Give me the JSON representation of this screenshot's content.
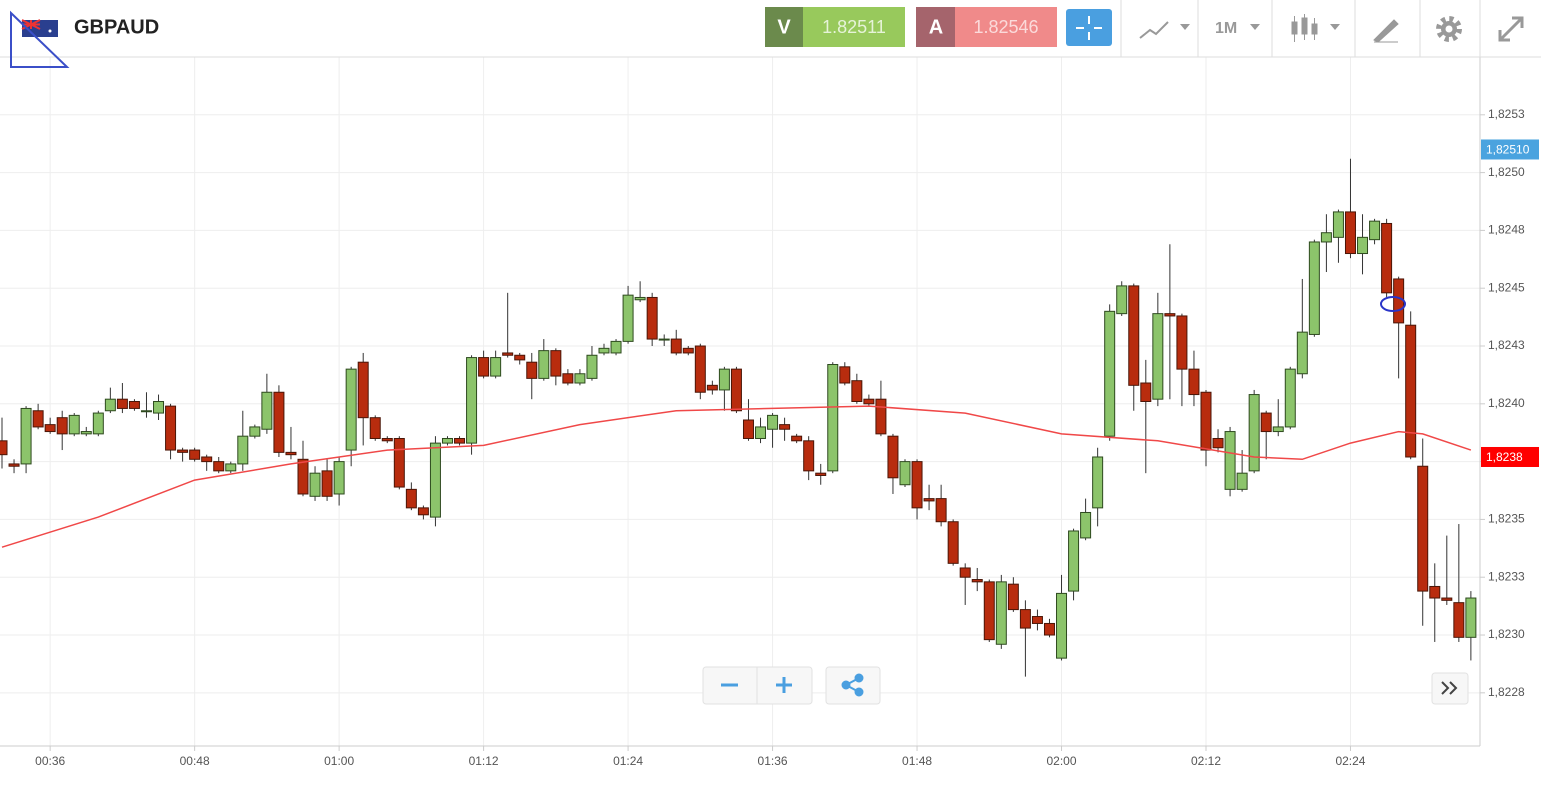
{
  "header": {
    "symbol": "GBPAUD",
    "sell_label": "V",
    "sell_price": "1.82511",
    "buy_label": "A",
    "buy_price": "1.82546",
    "timeframe": "1M"
  },
  "chart_data": {
    "type": "candlestick",
    "x": [
      "00:32",
      "00:33",
      "00:34",
      "00:35",
      "00:36",
      "00:37",
      "00:38",
      "00:39",
      "00:40",
      "00:41",
      "00:42",
      "00:43",
      "00:44",
      "00:45",
      "00:46",
      "00:47",
      "00:48",
      "00:49",
      "00:50",
      "00:51",
      "00:52",
      "00:53",
      "00:54",
      "00:55",
      "00:56",
      "00:57",
      "00:58",
      "00:59",
      "01:00",
      "01:01",
      "01:02",
      "01:03",
      "01:04",
      "01:05",
      "01:06",
      "01:07",
      "01:08",
      "01:09",
      "01:10",
      "01:11",
      "01:12",
      "01:13",
      "01:14",
      "01:15",
      "01:16",
      "01:17",
      "01:18",
      "01:19",
      "01:20",
      "01:21",
      "01:22",
      "01:23",
      "01:24",
      "01:25",
      "01:26",
      "01:27",
      "01:28",
      "01:29",
      "01:30",
      "01:31",
      "01:32",
      "01:33",
      "01:34",
      "01:35",
      "01:36",
      "01:37",
      "01:38",
      "01:39",
      "01:40",
      "01:41",
      "01:42",
      "01:43",
      "01:44",
      "01:45",
      "01:46",
      "01:47",
      "01:48",
      "01:49",
      "01:50",
      "01:51",
      "01:52",
      "01:53",
      "01:54",
      "01:55",
      "01:56",
      "01:57",
      "01:58",
      "01:59",
      "02:00",
      "02:01",
      "02:02",
      "02:03",
      "02:04",
      "02:05",
      "02:06",
      "02:07",
      "02:08",
      "02:09",
      "02:10",
      "02:11",
      "02:12",
      "02:13",
      "02:14",
      "02:15",
      "02:16",
      "02:17",
      "02:18",
      "02:19",
      "02:20",
      "02:21",
      "02:22",
      "02:23",
      "02:24",
      "02:25",
      "02:26",
      "02:27",
      "02:28",
      "02:29",
      "02:30",
      "02:31",
      "02:32",
      "02:33",
      "02:34"
    ],
    "open": [
      1.82384,
      1.82374,
      1.82374,
      1.82397,
      1.82391,
      1.82394,
      1.82387,
      1.82387,
      1.82387,
      1.82397,
      1.82402,
      1.82401,
      1.82397,
      1.82396,
      1.82399,
      1.8238,
      1.8238,
      1.82377,
      1.82375,
      1.82371,
      1.82374,
      1.82386,
      1.82389,
      1.82405,
      1.82379,
      1.82376,
      1.8236,
      1.82371,
      1.82361,
      1.8238,
      1.82418,
      1.82394,
      1.82385,
      1.82385,
      1.82363,
      1.82355,
      1.82351,
      1.82383,
      1.82385,
      1.82383,
      1.8242,
      1.82412,
      1.82422,
      1.82421,
      1.82418,
      1.82411,
      1.82423,
      1.82413,
      1.82409,
      1.82411,
      1.82422,
      1.82422,
      1.82427,
      1.82445,
      1.82446,
      1.82428,
      1.82428,
      1.82424,
      1.82425,
      1.82408,
      1.82406,
      1.82415,
      1.82393,
      1.82385,
      1.82389,
      1.82391,
      1.82386,
      1.82384,
      1.8237,
      1.82371,
      1.82416,
      1.8241,
      1.82402,
      1.82402,
      1.82386,
      1.82365,
      1.82375,
      1.82359,
      1.82359,
      1.82349,
      1.82329,
      1.82324,
      1.82323,
      1.82296,
      1.82322,
      1.82311,
      1.82308,
      1.82305,
      1.8229,
      1.82319,
      1.82342,
      1.82355,
      1.82386,
      1.82439,
      1.82451,
      1.82409,
      1.82402,
      1.82439,
      1.82438,
      1.82415,
      1.82405,
      1.82385,
      1.82363,
      1.82363,
      1.82371,
      1.82396,
      1.82388,
      1.8239,
      1.82413,
      1.8243,
      1.8247,
      1.82472,
      1.82483,
      1.82465,
      1.82471,
      1.82478,
      1.82454,
      1.82434,
      1.82373,
      1.82321,
      1.82316,
      1.82314,
      1.82299
    ],
    "high": [
      1.82394,
      1.82376,
      1.82399,
      1.824,
      1.82394,
      1.82397,
      1.82396,
      1.8239,
      1.82397,
      1.82407,
      1.82409,
      1.82402,
      1.82405,
      1.82404,
      1.824,
      1.82381,
      1.82381,
      1.82378,
      1.82377,
      1.82375,
      1.82397,
      1.82391,
      1.82413,
      1.82408,
      1.8239,
      1.82384,
      1.82373,
      1.82376,
      1.82377,
      1.82416,
      1.82422,
      1.82395,
      1.82386,
      1.82386,
      1.82366,
      1.82356,
      1.82386,
      1.82386,
      1.82386,
      1.82421,
      1.82423,
      1.82423,
      1.82448,
      1.82422,
      1.82422,
      1.82428,
      1.82424,
      1.82415,
      1.82415,
      1.82425,
      1.82426,
      1.82428,
      1.82451,
      1.82453,
      1.82448,
      1.8243,
      1.82432,
      1.82425,
      1.82426,
      1.8241,
      1.82416,
      1.82416,
      1.82402,
      1.82394,
      1.82396,
      1.82394,
      1.82387,
      1.82386,
      1.82374,
      1.82418,
      1.82418,
      1.82413,
      1.82404,
      1.8241,
      1.82387,
      1.82376,
      1.82376,
      1.82365,
      1.82365,
      1.8235,
      1.82331,
      1.82329,
      1.82324,
      1.82326,
      1.82325,
      1.82315,
      1.82311,
      1.82307,
      1.82326,
      1.82346,
      1.82359,
      1.82381,
      1.82443,
      1.82453,
      1.82452,
      1.82419,
      1.82448,
      1.82469,
      1.82439,
      1.82423,
      1.82406,
      1.82389,
      1.8239,
      1.8238,
      1.82406,
      1.82397,
      1.82402,
      1.82416,
      1.82454,
      1.82471,
      1.82482,
      1.82484,
      1.82506,
      1.82482,
      1.8248,
      1.8248,
      1.82455,
      1.8244,
      1.82385,
      1.82331,
      1.82343,
      1.82348,
      1.82319
    ],
    "low": [
      1.82372,
      1.8237,
      1.8237,
      1.82389,
      1.82387,
      1.8238,
      1.82386,
      1.82386,
      1.82386,
      1.82396,
      1.82396,
      1.82397,
      1.82394,
      1.82393,
      1.82376,
      1.82375,
      1.82375,
      1.82371,
      1.8237,
      1.8237,
      1.82371,
      1.82385,
      1.82387,
      1.82377,
      1.82376,
      1.8236,
      1.82358,
      1.82358,
      1.82356,
      1.82373,
      1.82382,
      1.82384,
      1.82383,
      1.82363,
      1.82354,
      1.8235,
      1.82347,
      1.82382,
      1.82382,
      1.82378,
      1.82411,
      1.82411,
      1.8242,
      1.82417,
      1.82402,
      1.8241,
      1.82408,
      1.82408,
      1.82408,
      1.8241,
      1.82421,
      1.82421,
      1.82426,
      1.82444,
      1.82425,
      1.82425,
      1.82421,
      1.82421,
      1.82402,
      1.82404,
      1.82397,
      1.82396,
      1.82384,
      1.82383,
      1.82381,
      1.82384,
      1.82383,
      1.82367,
      1.82365,
      1.8237,
      1.82408,
      1.824,
      1.82399,
      1.82386,
      1.82361,
      1.82364,
      1.8235,
      1.82354,
      1.82347,
      1.8233,
      1.82313,
      1.82319,
      1.82297,
      1.82294,
      1.8231,
      1.82282,
      1.82302,
      1.82299,
      1.82289,
      1.82315,
      1.82341,
      1.82347,
      1.82384,
      1.82438,
      1.82397,
      1.8237,
      1.82399,
      1.82402,
      1.82399,
      1.82399,
      1.82373,
      1.82379,
      1.8236,
      1.82362,
      1.8237,
      1.82376,
      1.82386,
      1.82389,
      1.82411,
      1.82429,
      1.82457,
      1.82461,
      1.82463,
      1.82456,
      1.82469,
      1.82446,
      1.82411,
      1.82376,
      1.82304,
      1.82297,
      1.82313,
      1.82297,
      1.82289
    ],
    "close": [
      1.82378,
      1.82373,
      1.82398,
      1.8239,
      1.82388,
      1.82387,
      1.82395,
      1.82388,
      1.82396,
      1.82402,
      1.82398,
      1.82398,
      1.82397,
      1.82401,
      1.8238,
      1.82379,
      1.82376,
      1.82375,
      1.82371,
      1.82374,
      1.82386,
      1.8239,
      1.82405,
      1.82379,
      1.82378,
      1.82361,
      1.8237,
      1.8236,
      1.82375,
      1.82415,
      1.82394,
      1.82385,
      1.82384,
      1.82364,
      1.82355,
      1.82352,
      1.82383,
      1.82385,
      1.82383,
      1.8242,
      1.82412,
      1.8242,
      1.82421,
      1.82419,
      1.82411,
      1.82423,
      1.82412,
      1.82409,
      1.82413,
      1.82421,
      1.82424,
      1.82427,
      1.82447,
      1.82446,
      1.82428,
      1.82428,
      1.82422,
      1.82422,
      1.82405,
      1.82406,
      1.82415,
      1.82397,
      1.82385,
      1.8239,
      1.82395,
      1.82389,
      1.82384,
      1.82371,
      1.82369,
      1.82417,
      1.82409,
      1.82401,
      1.824,
      1.82387,
      1.82368,
      1.82375,
      1.82355,
      1.82358,
      1.82349,
      1.82331,
      1.82325,
      1.82323,
      1.82298,
      1.82323,
      1.82311,
      1.82303,
      1.82305,
      1.823,
      1.82318,
      1.82345,
      1.82353,
      1.82377,
      1.8244,
      1.82451,
      1.82408,
      1.82401,
      1.82439,
      1.82438,
      1.82415,
      1.82404,
      1.8238,
      1.82381,
      1.82388,
      1.8237,
      1.82404,
      1.82388,
      1.8239,
      1.82415,
      1.82431,
      1.8247,
      1.82474,
      1.82483,
      1.82465,
      1.82472,
      1.82479,
      1.82448,
      1.82435,
      1.82377,
      1.82319,
      1.82316,
      1.82315,
      1.82299,
      1.82316
    ],
    "up_color": "#8cc46b",
    "down_color": "#b82c0e",
    "ylim": [
      1.82252,
      1.8255
    ],
    "yticks": [
      {
        "value": 1.82525,
        "label": "1,8253"
      },
      {
        "value": 1.825,
        "label": "1,8250"
      },
      {
        "value": 1.82475,
        "label": "1,8248"
      },
      {
        "value": 1.8245,
        "label": "1,8245"
      },
      {
        "value": 1.82425,
        "label": "1,8243"
      },
      {
        "value": 1.824,
        "label": "1,8240"
      },
      {
        "value": 1.82375,
        "label": "1,8238"
      },
      {
        "value": 1.8235,
        "label": "1,8235"
      },
      {
        "value": 1.82325,
        "label": "1,8233"
      },
      {
        "value": 1.823,
        "label": "1,8230"
      },
      {
        "value": 1.82275,
        "label": "1,8228"
      }
    ],
    "xticks": [
      "00:36",
      "00:48",
      "01:00",
      "01:12",
      "01:24",
      "01:36",
      "01:48",
      "02:00",
      "02:12",
      "02:24"
    ],
    "grid": true,
    "moving_average": {
      "color": "#f04848",
      "x": [
        "00:32",
        "00:40",
        "00:48",
        "00:56",
        "01:04",
        "01:12",
        "01:20",
        "01:28",
        "01:36",
        "01:44",
        "01:52",
        "02:00",
        "02:08",
        "02:16",
        "02:20",
        "02:24",
        "02:28",
        "02:30",
        "02:34"
      ],
      "values": [
        1.82338,
        1.82351,
        1.82367,
        1.82374,
        1.8238,
        1.82382,
        1.82391,
        1.82397,
        1.82398,
        1.82399,
        1.82396,
        1.82387,
        1.82384,
        1.82377,
        1.82376,
        1.82383,
        1.82388,
        1.82387,
        1.8238
      ]
    },
    "price_markers": [
      {
        "value": 1.8251,
        "label": "1,82510",
        "color": "#4aa3df"
      },
      {
        "value": 1.82377,
        "label": "1,8238",
        "color": "#ff0000"
      }
    ]
  }
}
